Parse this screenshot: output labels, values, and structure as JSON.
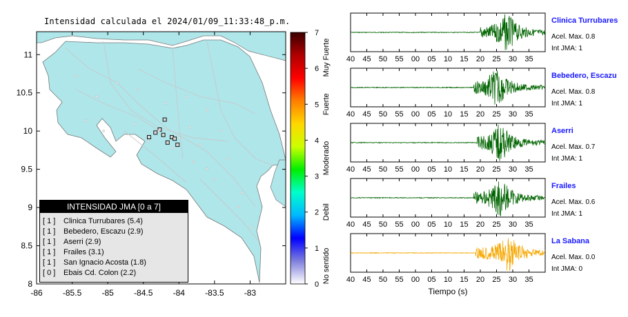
{
  "map": {
    "title": "Intensidad calculada el 2024/01/09_11:33:48_p.m.",
    "x_ticks": [
      "-86",
      "-85.5",
      "-85",
      "-84.5",
      "-84",
      "-83.5",
      "-83"
    ],
    "y_ticks": [
      "11",
      "10.5",
      "10",
      "9.5",
      "9",
      "8.5",
      "8"
    ],
    "xlim": [
      -86,
      -82.5
    ],
    "ylim": [
      8,
      11.3
    ],
    "stations": [
      {
        "lon": -84.2,
        "lat": 10.15
      },
      {
        "lon": -84.42,
        "lat": 9.92
      },
      {
        "lon": -84.33,
        "lat": 9.98
      },
      {
        "lon": -84.22,
        "lat": 9.95
      },
      {
        "lon": -84.1,
        "lat": 9.92
      },
      {
        "lon": -84.02,
        "lat": 9.82
      },
      {
        "lon": -84.16,
        "lat": 9.85
      },
      {
        "lon": -84.06,
        "lat": 9.9
      },
      {
        "lon": -84.27,
        "lat": 10.02
      }
    ]
  },
  "colorbar": {
    "ticks": [
      "0",
      "1",
      "2",
      "3",
      "4",
      "5",
      "6",
      "7"
    ],
    "labels": [
      "No sentido",
      "Debil",
      "Moderado",
      "Fuerte",
      "Muy Fuerte"
    ],
    "colors": [
      "#ffffff",
      "#7f7fdd",
      "#0000ff",
      "#00b8ff",
      "#00ffcc",
      "#00ee00",
      "#ccff00",
      "#ffd700",
      "#ff7f00",
      "#ff0000",
      "#b00000",
      "#3a0000"
    ]
  },
  "legend": {
    "header": "INTENSIDAD JMA [0 a 7]",
    "items": [
      {
        "jma": "[ 1 ]",
        "name": "Clinica Turrubares (5.4)"
      },
      {
        "jma": "[ 1 ]",
        "name": "Bebedero, Escazu (2.9)"
      },
      {
        "jma": "[ 1 ]",
        "name": "Aserri (2.9)"
      },
      {
        "jma": "[ 1 ]",
        "name": "Frailes (3.1)"
      },
      {
        "jma": "[ 1 ]",
        "name": "San Ignacio Acosta (1.8)"
      },
      {
        "jma": "[ 0 ]",
        "name": "Ebais Cd. Colon (2.2)"
      }
    ]
  },
  "waveforms": {
    "xlabel": "Tiempo (s)",
    "x_ticks": [
      "40",
      "45",
      "50",
      "55",
      "00",
      "05",
      "10",
      "15",
      "20",
      "25",
      "30",
      "35"
    ],
    "traces": [
      {
        "station": "Clinica Turrubares",
        "accel": "Acel. Max. 0.8",
        "jma": "Int JMA: 1",
        "color": "#006400",
        "onset": 20,
        "peak": 28.5
      },
      {
        "station": "Bebedero, Escazu",
        "accel": "Acel. Max. 0.8",
        "jma": "Int JMA: 1",
        "color": "#006400",
        "onset": 18,
        "peak": 25.5
      },
      {
        "station": "Aserri",
        "accel": "Acel. Max. 0.7",
        "jma": "Int JMA: 1",
        "color": "#006400",
        "onset": 19,
        "peak": 26.5
      },
      {
        "station": "Frailes",
        "accel": "Acel. Max. 0.6",
        "jma": "Int JMA: 1",
        "color": "#006400",
        "onset": 18,
        "peak": 26.5
      },
      {
        "station": "La Sabana",
        "accel": "Acel. Max. 0.0",
        "jma": "Int JMA: 0",
        "color": "#f5a700",
        "onset": 18.5,
        "peak": 29
      }
    ]
  }
}
